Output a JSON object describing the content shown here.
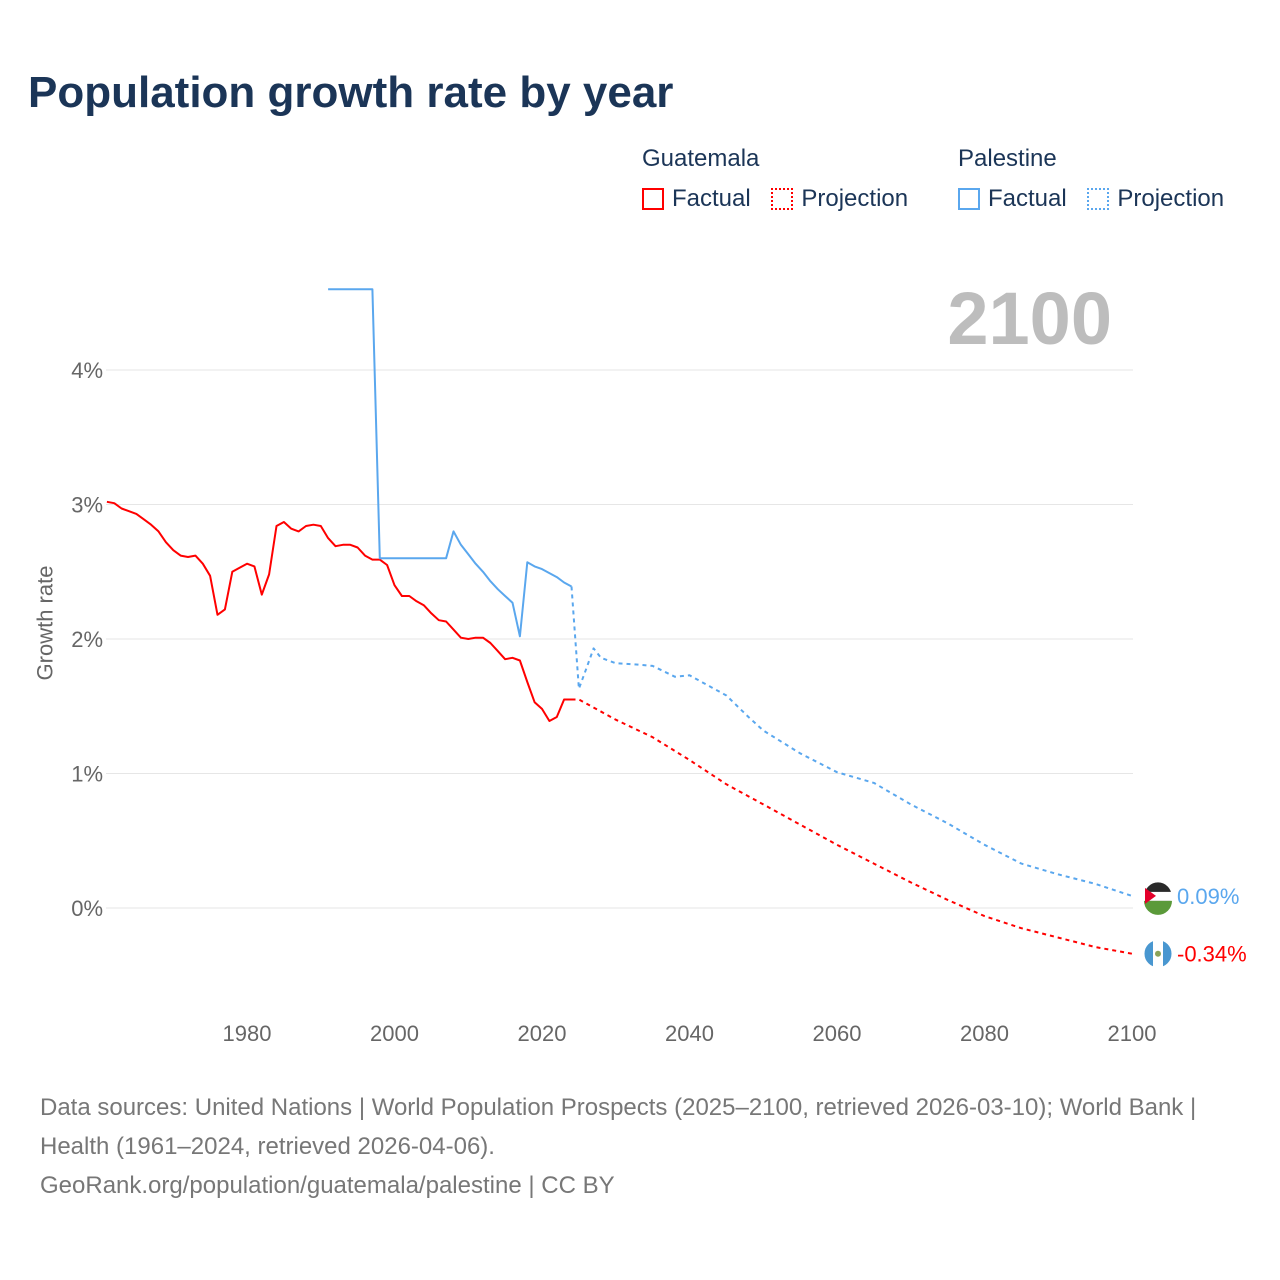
{
  "title": "Population growth rate by year",
  "legend": {
    "groups": [
      {
        "name": "Guatemala",
        "factual": "Factual",
        "projection": "Projection",
        "color": "#ff0000"
      },
      {
        "name": "Palestine",
        "factual": "Factual",
        "projection": "Projection",
        "color": "#5aa7ee"
      }
    ]
  },
  "current_year": "2100",
  "source": {
    "line1": "Data sources: United Nations | World Population Prospects (2025–2100, retrieved 2026-03-10); World Bank | Health (1961–2024, retrieved 2026-04-06).",
    "line2": "GeoRank.org/population/guatemala/palestine | CC BY"
  },
  "chart_data": {
    "type": "line",
    "title": "Population growth rate by year",
    "xlabel": "",
    "ylabel": "Growth rate",
    "xlim": [
      1961,
      2100
    ],
    "ylim": [
      -0.75,
      4.7
    ],
    "x_ticks": [
      1980,
      2000,
      2020,
      2040,
      2060,
      2080,
      2100
    ],
    "y_ticks": [
      0,
      1,
      2,
      3,
      4
    ],
    "y_tick_labels": [
      "0%",
      "1%",
      "2%",
      "3%",
      "4%"
    ],
    "grid": true,
    "legend_position": "top-right",
    "series": [
      {
        "name": "Guatemala Factual",
        "color": "#ff0000",
        "style": "solid",
        "x": [
          1961,
          1962,
          1963,
          1964,
          1965,
          1966,
          1967,
          1968,
          1969,
          1970,
          1971,
          1972,
          1973,
          1974,
          1975,
          1976,
          1977,
          1978,
          1979,
          1980,
          1981,
          1982,
          1983,
          1984,
          1985,
          1986,
          1987,
          1988,
          1989,
          1990,
          1991,
          1992,
          1993,
          1994,
          1995,
          1996,
          1997,
          1998,
          1999,
          2000,
          2001,
          2002,
          2003,
          2004,
          2005,
          2006,
          2007,
          2008,
          2009,
          2010,
          2011,
          2012,
          2013,
          2014,
          2015,
          2016,
          2017,
          2018,
          2019,
          2020,
          2021,
          2022,
          2023,
          2024
        ],
        "y": [
          3.02,
          3.01,
          2.97,
          2.95,
          2.93,
          2.89,
          2.85,
          2.8,
          2.72,
          2.66,
          2.62,
          2.61,
          2.62,
          2.56,
          2.47,
          2.18,
          2.22,
          2.5,
          2.53,
          2.56,
          2.54,
          2.33,
          2.48,
          2.84,
          2.87,
          2.82,
          2.8,
          2.84,
          2.85,
          2.84,
          2.75,
          2.69,
          2.7,
          2.7,
          2.68,
          2.62,
          2.59,
          2.59,
          2.55,
          2.4,
          2.32,
          2.32,
          2.28,
          2.25,
          2.19,
          2.14,
          2.13,
          2.07,
          2.01,
          2.0,
          2.01,
          2.01,
          1.97,
          1.91,
          1.85,
          1.86,
          1.84,
          1.68,
          1.53,
          1.48,
          1.39,
          1.42,
          1.55,
          1.55
        ]
      },
      {
        "name": "Guatemala Projection",
        "color": "#ff0000",
        "style": "dotted",
        "x": [
          2024,
          2025,
          2030,
          2035,
          2040,
          2045,
          2050,
          2055,
          2060,
          2065,
          2070,
          2075,
          2080,
          2085,
          2090,
          2095,
          2100
        ],
        "y": [
          1.55,
          1.55,
          1.4,
          1.27,
          1.1,
          0.92,
          0.77,
          0.62,
          0.47,
          0.33,
          0.19,
          0.06,
          -0.06,
          -0.15,
          -0.22,
          -0.29,
          -0.34
        ]
      },
      {
        "name": "Palestine Factual",
        "color": "#5aa7ee",
        "style": "solid",
        "x": [
          1991,
          1997,
          1998,
          2007,
          2008,
          2009,
          2010,
          2011,
          2012,
          2013,
          2014,
          2015,
          2016,
          2017,
          2018,
          2019,
          2020,
          2021,
          2022,
          2023,
          2024
        ],
        "y": [
          4.6,
          4.6,
          2.6,
          2.6,
          2.8,
          2.7,
          2.63,
          2.56,
          2.5,
          2.43,
          2.37,
          2.32,
          2.27,
          2.02,
          2.57,
          2.54,
          2.52,
          2.49,
          2.46,
          2.42,
          2.39
        ]
      },
      {
        "name": "Palestine Projection",
        "color": "#5aa7ee",
        "style": "dotted",
        "x": [
          2024,
          2025,
          2026,
          2027,
          2028,
          2030,
          2033,
          2035,
          2038,
          2040,
          2045,
          2048,
          2050,
          2055,
          2060,
          2065,
          2070,
          2075,
          2080,
          2085,
          2090,
          2095,
          2100
        ],
        "y": [
          2.39,
          1.63,
          1.78,
          1.93,
          1.86,
          1.82,
          1.81,
          1.8,
          1.72,
          1.73,
          1.58,
          1.42,
          1.32,
          1.15,
          1.01,
          0.93,
          0.77,
          0.63,
          0.47,
          0.33,
          0.25,
          0.18,
          0.09
        ]
      }
    ],
    "end_labels": [
      {
        "series": "Palestine",
        "text": "0.09%",
        "value": 0.09,
        "color": "#5aa7ee"
      },
      {
        "series": "Guatemala",
        "text": "-0.34%",
        "value": -0.34,
        "color": "#ff0000"
      }
    ]
  }
}
